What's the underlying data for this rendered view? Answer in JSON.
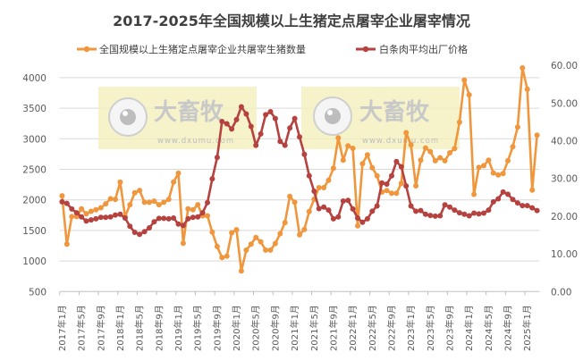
{
  "chart_data": {
    "type": "line",
    "title": "2017-2025年全国规模以上生猪定点屠宰企业屠宰情况",
    "legend_position": "top",
    "grid": true,
    "x_tick_labels": [
      "2017年1月",
      "2017年5月",
      "2017年9月",
      "2018年1月",
      "2018年5月",
      "2018年9月",
      "2019年1月",
      "2019年5月",
      "2019年9月",
      "2020年1月",
      "2020年5月",
      "2020年9月",
      "2021年1月",
      "2021年5月",
      "2021年9月",
      "2022年1月",
      "2022年5月",
      "2022年9月",
      "2023年1月",
      "2023年5月",
      "2023年9月",
      "2024年1月",
      "2024年5月",
      "2024年9月",
      "2025年1月"
    ],
    "x_start": "2017年1月",
    "x_end": "2025年3月",
    "y_left": {
      "ylim": [
        500,
        4000
      ],
      "ticks": [
        "500",
        "1000",
        "1500",
        "2000",
        "2500",
        "3000",
        "3500",
        "4000"
      ]
    },
    "y_right": {
      "ylim": [
        0,
        60
      ],
      "ticks": [
        "0.00",
        "10.00",
        "20.00",
        "30.00",
        "40.00",
        "50.00",
        "60.00"
      ]
    },
    "series": [
      {
        "name": "全国规模以上生猪定点屠宰企业共屠宰生猪数量",
        "axis": "left",
        "color": "#F0963C",
        "values": [
          2067,
          1276,
          1726,
          1726,
          1853,
          1774,
          1813,
          1838,
          1872,
          1936,
          2019,
          2009,
          2292,
          1726,
          1921,
          2116,
          2155,
          1960,
          1960,
          1980,
          1921,
          1960,
          2009,
          2292,
          2439,
          1291,
          1853,
          1838,
          1921,
          1740,
          1740,
          1472,
          1237,
          1057,
          1081,
          1462,
          1511,
          837,
          1179,
          1276,
          1384,
          1315,
          1179,
          1179,
          1286,
          1447,
          1628,
          2058,
          1960,
          1430,
          1517,
          1810,
          2010,
          2200,
          2200,
          2322,
          2517,
          3015,
          2650,
          2883,
          2843,
          1576,
          2590,
          2737,
          2526,
          2395,
          2127,
          2152,
          2108,
          2108,
          2270,
          3100,
          2900,
          2230,
          2650,
          2850,
          2790,
          2640,
          2690,
          2640,
          2770,
          2840,
          3270,
          3960,
          3720,
          2090,
          2530,
          2560,
          2650,
          2440,
          2410,
          2430,
          2640,
          2870,
          3190,
          4160,
          3810,
          2160,
          3060
        ]
      },
      {
        "name": "白条肉平均出厂价格",
        "axis": "right",
        "color": "#B5423F",
        "values": [
          23.8,
          23.4,
          21.9,
          20.9,
          19.8,
          18.7,
          19.0,
          19.3,
          19.7,
          19.7,
          19.8,
          20.3,
          20.5,
          19.5,
          17.3,
          15.7,
          15.2,
          15.9,
          16.9,
          18.5,
          19.4,
          19.4,
          19.3,
          19.5,
          17.9,
          17.5,
          19.3,
          19.7,
          19.8,
          20.9,
          23.6,
          29.9,
          35.6,
          45.1,
          44.5,
          43.1,
          45.6,
          49.0,
          47.1,
          43.8,
          38.8,
          41.8,
          46.9,
          47.7,
          45.9,
          39.8,
          38.8,
          43.4,
          45.9,
          41.0,
          36.4,
          30.7,
          26.6,
          22.0,
          22.4,
          21.6,
          19.3,
          19.8,
          24.0,
          24.2,
          21.9,
          19.5,
          18.4,
          19.3,
          21.3,
          22.7,
          28.8,
          28.5,
          30.7,
          34.5,
          33.1,
          28.0,
          22.7,
          21.3,
          21.5,
          20.5,
          20.2,
          20.0,
          20.1,
          23.0,
          22.4,
          21.6,
          20.9,
          20.5,
          20.1,
          20.8,
          20.6,
          20.8,
          21.6,
          23.8,
          24.6,
          26.4,
          25.8,
          24.4,
          23.5,
          22.8,
          22.8,
          22.2,
          21.5
        ]
      }
    ]
  },
  "watermark": {
    "logo_text": "大畜牧",
    "url_text": "www.dxumu.com"
  }
}
